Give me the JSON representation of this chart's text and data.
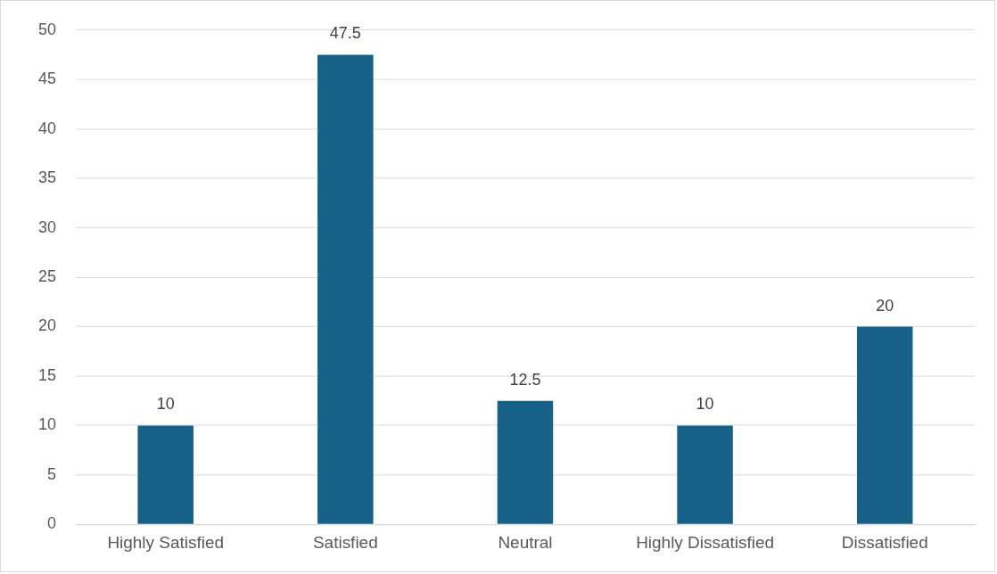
{
  "chart_data": {
    "type": "bar",
    "categories": [
      "Highly Satisfied",
      "Satisfied",
      "Neutral",
      "Highly Dissatisfied",
      "Dissatisfied"
    ],
    "values": [
      10,
      47.5,
      12.5,
      10,
      20
    ],
    "color": "#176087",
    "ylim": [
      0,
      50
    ],
    "yticks": [
      0,
      5,
      10,
      15,
      20,
      25,
      30,
      35,
      40,
      45,
      50
    ],
    "grid": "y",
    "data_labels": true
  }
}
